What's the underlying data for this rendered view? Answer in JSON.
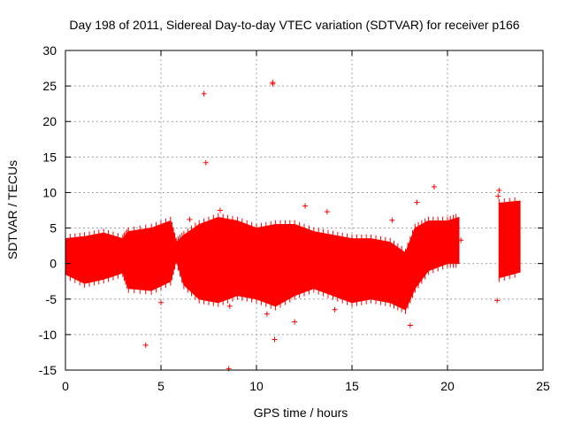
{
  "chart_data": {
    "type": "scatter",
    "title": "Day 198 of 2011, Sidereal Day-to-day VTEC variation (SDTVAR) for receiver p166",
    "xlabel": "GPS time / hours",
    "ylabel": "SDTVAR / TECUs",
    "xlim": [
      0,
      25
    ],
    "ylim": [
      -15,
      30
    ],
    "xticks": [
      0,
      5,
      10,
      15,
      20,
      25
    ],
    "yticks": [
      -15,
      -10,
      -5,
      0,
      5,
      10,
      15,
      20,
      25,
      30
    ],
    "grid": true,
    "color": "#ff0000",
    "envelope": [
      {
        "x": 0.0,
        "low": -1.5,
        "high": 3.5
      },
      {
        "x": 1.0,
        "low": -2.8,
        "high": 3.8
      },
      {
        "x": 2.0,
        "low": -2.2,
        "high": 4.3
      },
      {
        "x": 3.0,
        "low": -1.3,
        "high": 3.5
      },
      {
        "x": 3.3,
        "low": -3.5,
        "high": 4.5
      },
      {
        "x": 4.5,
        "low": -3.8,
        "high": 5.0
      },
      {
        "x": 5.5,
        "low": -2.5,
        "high": 6.0
      },
      {
        "x": 5.8,
        "low": 0.5,
        "high": 3.0
      },
      {
        "x": 6.2,
        "low": -3.0,
        "high": 4.0
      },
      {
        "x": 7.0,
        "low": -5.0,
        "high": 5.5
      },
      {
        "x": 8.0,
        "low": -5.5,
        "high": 6.5
      },
      {
        "x": 9.0,
        "low": -4.5,
        "high": 6.0
      },
      {
        "x": 10.0,
        "low": -5.0,
        "high": 5.0
      },
      {
        "x": 11.0,
        "low": -6.0,
        "high": 5.5
      },
      {
        "x": 12.0,
        "low": -4.5,
        "high": 5.5
      },
      {
        "x": 13.0,
        "low": -3.5,
        "high": 4.5
      },
      {
        "x": 14.0,
        "low": -4.5,
        "high": 4.0
      },
      {
        "x": 15.0,
        "low": -5.5,
        "high": 3.5
      },
      {
        "x": 16.0,
        "low": -5.0,
        "high": 3.5
      },
      {
        "x": 17.0,
        "low": -5.5,
        "high": 3.0
      },
      {
        "x": 17.8,
        "low": -6.5,
        "high": 1.5
      },
      {
        "x": 18.3,
        "low": -3.5,
        "high": 5.0
      },
      {
        "x": 19.0,
        "low": -1.0,
        "high": 6.0
      },
      {
        "x": 20.0,
        "low": 0.0,
        "high": 6.0
      },
      {
        "x": 20.6,
        "low": 0.0,
        "high": 6.5
      }
    ],
    "envelope2": [
      {
        "x": 22.7,
        "low": -2.0,
        "high": 8.5
      },
      {
        "x": 23.8,
        "low": -1.2,
        "high": 8.8
      }
    ],
    "points": [
      {
        "x": 7.25,
        "y": 23.9
      },
      {
        "x": 7.35,
        "y": 14.2
      },
      {
        "x": 10.85,
        "y": 25.5
      },
      {
        "x": 10.85,
        "y": 25.3
      },
      {
        "x": 19.3,
        "y": 10.8
      },
      {
        "x": 22.7,
        "y": 10.3
      },
      {
        "x": 22.65,
        "y": 9.5
      },
      {
        "x": 4.2,
        "y": -11.5
      },
      {
        "x": 8.55,
        "y": -14.8
      },
      {
        "x": 10.95,
        "y": -10.7
      },
      {
        "x": 18.05,
        "y": -8.7
      },
      {
        "x": 22.6,
        "y": -5.2
      },
      {
        "x": 12.0,
        "y": -8.2
      },
      {
        "x": 10.55,
        "y": -7.1
      },
      {
        "x": 13.7,
        "y": 7.3
      },
      {
        "x": 17.1,
        "y": 6.1
      },
      {
        "x": 18.4,
        "y": 8.6
      },
      {
        "x": 8.1,
        "y": 7.5
      },
      {
        "x": 12.55,
        "y": 8.1
      },
      {
        "x": 14.1,
        "y": -6.5
      },
      {
        "x": 8.6,
        "y": -6.0
      },
      {
        "x": 5.0,
        "y": -5.5
      },
      {
        "x": 6.5,
        "y": 6.2
      },
      {
        "x": 20.7,
        "y": 3.3
      }
    ]
  }
}
